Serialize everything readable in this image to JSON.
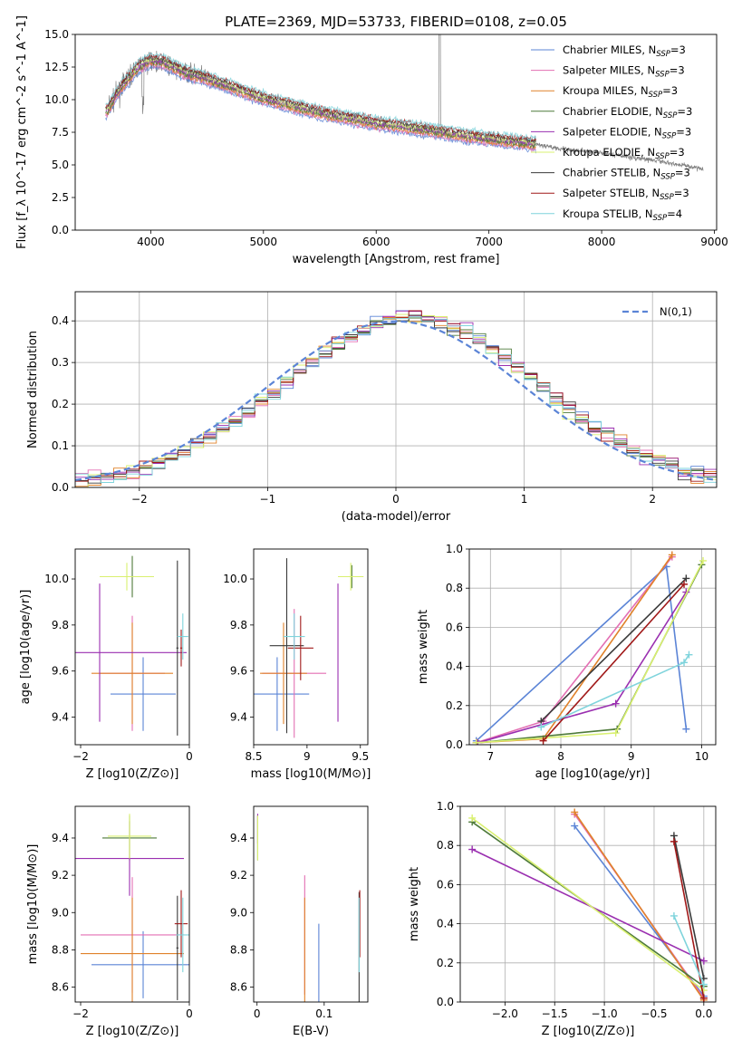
{
  "figure": {
    "title": "PLATE=2369, MJD=53733, FIBERID=0108, z=0.05"
  },
  "colors": {
    "data": "#808080",
    "series": [
      "#5b84d6",
      "#e36fb3",
      "#e0822a",
      "#4e7a3a",
      "#9a2fb0",
      "#d9f070",
      "#3a3a3a",
      "#a01818",
      "#7fd4dc"
    ]
  },
  "legend": [
    {
      "label": "Chabrier MILES, N",
      "sub": "SSP",
      "suffix": "=3"
    },
    {
      "label": "Salpeter MILES, N",
      "sub": "SSP",
      "suffix": "=3"
    },
    {
      "label": "Kroupa MILES, N",
      "sub": "SSP",
      "suffix": "=3"
    },
    {
      "label": "Chabrier ELODIE, N",
      "sub": "SSP",
      "suffix": "=3"
    },
    {
      "label": "Salpeter ELODIE, N",
      "sub": "SSP",
      "suffix": "=3"
    },
    {
      "label": "Kroupa ELODIE, N",
      "sub": "SSP",
      "suffix": "=3"
    },
    {
      "label": "Chabrier STELIB, N",
      "sub": "SSP",
      "suffix": "=3"
    },
    {
      "label": "Salpeter STELIB, N",
      "sub": "SSP",
      "suffix": "=3"
    },
    {
      "label": "Kroupa STELIB, N",
      "sub": "SSP",
      "suffix": "=4"
    }
  ],
  "chart_data": [
    {
      "id": "spectrum",
      "type": "line",
      "xlabel": "wavelength [Angstrom, rest frame]",
      "ylabel": "Flux [f_λ 10^-17 erg cm^-2 s^-1 A^-1]",
      "xlim": [
        3330,
        9020
      ],
      "ylim": [
        0,
        15
      ],
      "xticks": [
        4000,
        5000,
        6000,
        7000,
        8000,
        9000
      ],
      "yticks": [
        0.0,
        2.5,
        5.0,
        7.5,
        10.0,
        12.5,
        15.0
      ],
      "continuum": {
        "x": [
          3620,
          3700,
          3800,
          3900,
          4000,
          4100,
          4300,
          4500,
          5000,
          5500,
          6000,
          6500,
          7000,
          7400,
          7600,
          8000,
          8500,
          8900
        ],
        "y": [
          9.2,
          10.5,
          11.6,
          12.6,
          13.0,
          12.9,
          12.1,
          11.6,
          10.1,
          9.0,
          8.2,
          7.6,
          7.0,
          6.6,
          6.3,
          5.9,
          5.3,
          4.7
        ]
      },
      "model_range": [
        3600,
        7420
      ]
    },
    {
      "id": "residuals",
      "type": "line",
      "xlabel": "(data-model)/error",
      "ylabel": "Normed distribution",
      "xlim": [
        -2.5,
        2.5
      ],
      "ylim": [
        0,
        0.47
      ],
      "xticks": [
        -2,
        -1,
        0,
        1,
        2
      ],
      "yticks": [
        0.0,
        0.1,
        0.2,
        0.3,
        0.4
      ],
      "legend_label": "N(0,1)",
      "bin_width": 0.1,
      "grid": true
    },
    {
      "id": "age_vs_Z",
      "type": "scatter",
      "xlabel": "Z [log10(Z/Z⊙)]",
      "ylabel": "age [log10(age/yr)]",
      "xlim": [
        -2.1,
        0.0
      ],
      "ylim": [
        9.28,
        10.13
      ],
      "xticks": [
        -2,
        0
      ],
      "yticks": [
        9.4,
        9.6,
        9.8,
        10.0
      ],
      "points": [
        {
          "x": -0.85,
          "y": 9.5,
          "xerr": 0.6,
          "yerr": 0.16
        },
        {
          "x": -1.05,
          "y": 9.59,
          "xerr": 0.6,
          "yerr": 0.25
        },
        {
          "x": -1.05,
          "y": 9.59,
          "xerr": 0.75,
          "yerr": 0.22
        },
        {
          "x": -1.05,
          "y": 10.01,
          "xerr": 0.4,
          "yerr": 0.09
        },
        {
          "x": -1.65,
          "y": 9.68,
          "xerr": 1.6,
          "yerr": 0.3
        },
        {
          "x": -1.15,
          "y": 10.01,
          "xerr": 0.5,
          "yerr": 0.06
        },
        {
          "x": -0.22,
          "y": 9.7,
          "xerr": 0.02,
          "yerr": 0.38
        },
        {
          "x": -0.15,
          "y": 9.7,
          "xerr": 0.02,
          "yerr": 0.08
        },
        {
          "x": -0.12,
          "y": 9.75,
          "xerr": 0.1,
          "yerr": 0.1
        }
      ]
    },
    {
      "id": "age_vs_mass",
      "type": "scatter",
      "xlabel": "mass [log10(M/M⊙)]",
      "ylabel": "",
      "xlim": [
        8.5,
        9.57
      ],
      "ylim": [
        9.28,
        10.13
      ],
      "xticks": [
        8.5,
        9.0,
        9.5
      ],
      "yticks": [
        9.4,
        9.6,
        9.8,
        10.0
      ],
      "points": [
        {
          "x": 8.72,
          "y": 9.5,
          "xerr": 0.3,
          "yerr": 0.16
        },
        {
          "x": 8.88,
          "y": 9.59,
          "xerr": 0.3,
          "yerr": 0.28
        },
        {
          "x": 8.78,
          "y": 9.59,
          "xerr": 0.22,
          "yerr": 0.22
        },
        {
          "x": 9.42,
          "y": 10.01,
          "xerr": 0.1,
          "yerr": 0.05
        },
        {
          "x": 9.29,
          "y": 9.68,
          "xerr": 0.0,
          "yerr": 0.3
        },
        {
          "x": 9.41,
          "y": 10.01,
          "xerr": 0.12,
          "yerr": 0.06
        },
        {
          "x": 8.81,
          "y": 9.71,
          "xerr": 0.16,
          "yerr": 0.38
        },
        {
          "x": 8.94,
          "y": 9.7,
          "xerr": 0.12,
          "yerr": 0.14
        },
        {
          "x": 8.88,
          "y": 9.75,
          "xerr": 0.1,
          "yerr": 0.1
        }
      ]
    },
    {
      "id": "weight_vs_age",
      "type": "line",
      "xlabel": "age [log10(age/yr)]",
      "ylabel": "mass weight",
      "xlim": [
        6.7,
        10.2
      ],
      "ylim": [
        0,
        1.0
      ],
      "xticks": [
        7,
        8,
        9,
        10
      ],
      "yticks": [
        0.0,
        0.2,
        0.4,
        0.6,
        0.8,
        1.0
      ],
      "series": [
        {
          "x": [
            6.8,
            9.5,
            9.78
          ],
          "y": [
            0.02,
            0.91,
            0.08
          ]
        },
        {
          "x": [
            6.8,
            7.75,
            9.58
          ],
          "y": [
            0.01,
            0.12,
            0.96
          ]
        },
        {
          "x": [
            6.8,
            7.75,
            9.58
          ],
          "y": [
            0.01,
            0.03,
            0.97
          ]
        },
        {
          "x": [
            6.82,
            8.8,
            10.0
          ],
          "y": [
            0.01,
            0.08,
            0.92
          ]
        },
        {
          "x": [
            6.82,
            8.78,
            9.78
          ],
          "y": [
            0.01,
            0.21,
            0.78
          ]
        },
        {
          "x": [
            6.8,
            8.78,
            10.02
          ],
          "y": [
            0.01,
            0.06,
            0.94
          ]
        },
        {
          "x": [
            7.72,
            9.78
          ],
          "y": [
            0.12,
            0.85
          ]
        },
        {
          "x": [
            7.75,
            9.75
          ],
          "y": [
            0.02,
            0.82
          ]
        },
        {
          "x": [
            7.72,
            9.75,
            9.82
          ],
          "y": [
            0.09,
            0.42,
            0.46
          ]
        }
      ]
    },
    {
      "id": "mass_vs_Z",
      "type": "scatter",
      "xlabel": "Z [log10(Z/Z⊙)]",
      "ylabel": "mass [log10(M/M⊙)]",
      "xlim": [
        -2.1,
        0.0
      ],
      "ylim": [
        8.52,
        9.57
      ],
      "xticks": [
        -2,
        0
      ],
      "yticks": [
        8.6,
        8.8,
        9.0,
        9.2,
        9.4
      ],
      "points": [
        {
          "x": -0.85,
          "y": 8.72,
          "xerr": 0.95,
          "yerr": 0.18
        },
        {
          "x": -1.05,
          "y": 8.88,
          "xerr": 0.95,
          "yerr": 0.31
        },
        {
          "x": -1.05,
          "y": 8.78,
          "xerr": 0.95,
          "yerr": 0.3
        },
        {
          "x": -1.1,
          "y": 9.4,
          "xerr": 0.5,
          "yerr": 0.12
        },
        {
          "x": -1.1,
          "y": 9.29,
          "xerr": 1.0,
          "yerr": 0.2
        },
        {
          "x": -1.1,
          "y": 9.41,
          "xerr": 0.4,
          "yerr": 0.12
        },
        {
          "x": -0.22,
          "y": 8.81,
          "xerr": 0.02,
          "yerr": 0.28
        },
        {
          "x": -0.15,
          "y": 8.94,
          "xerr": 0.12,
          "yerr": 0.18
        },
        {
          "x": -0.12,
          "y": 8.88,
          "xerr": 0.12,
          "yerr": 0.2
        }
      ]
    },
    {
      "id": "mass_vs_EBV",
      "type": "scatter",
      "xlabel": "E(B-V)",
      "ylabel": "",
      "xlim": [
        -0.005,
        0.165
      ],
      "ylim": [
        8.52,
        9.57
      ],
      "xticks": [
        0.0,
        0.1
      ],
      "yticks": [
        8.6,
        8.8,
        9.0,
        9.2,
        9.4
      ],
      "points": [
        {
          "x": 0.092,
          "y": 8.72,
          "xerr": 0.0,
          "yerr": 0.22
        },
        {
          "x": 0.071,
          "y": 8.88,
          "xerr": 0.0,
          "yerr": 0.32
        },
        {
          "x": 0.071,
          "y": 8.78,
          "xerr": 0.0,
          "yerr": 0.3
        },
        {
          "x": 0.001,
          "y": 9.4,
          "xerr": 0.0,
          "yerr": 0.12
        },
        {
          "x": 0.001,
          "y": 9.45,
          "xerr": 0.0,
          "yerr": 0.08
        },
        {
          "x": 0.001,
          "y": 9.4,
          "xerr": 0.0,
          "yerr": 0.12
        },
        {
          "x": 0.152,
          "y": 8.81,
          "xerr": 0.0,
          "yerr": 0.3
        },
        {
          "x": 0.153,
          "y": 8.94,
          "xerr": 0.0,
          "yerr": 0.18
        },
        {
          "x": 0.152,
          "y": 8.88,
          "xerr": 0.0,
          "yerr": 0.2
        }
      ]
    },
    {
      "id": "weight_vs_Z",
      "type": "line",
      "xlabel": "Z [log10(Z/Z⊙)]",
      "ylabel": "mass weight",
      "xlim": [
        -2.45,
        0.12
      ],
      "ylim": [
        0,
        1.0
      ],
      "xticks": [
        -2.0,
        -1.5,
        -1.0,
        -0.5,
        0.0
      ],
      "yticks": [
        0.0,
        0.2,
        0.4,
        0.6,
        0.8,
        1.0
      ],
      "series": [
        {
          "x": [
            -1.3,
            0.0
          ],
          "y": [
            0.9,
            0.03
          ]
        },
        {
          "x": [
            -1.3,
            0.0
          ],
          "y": [
            0.96,
            0.02
          ]
        },
        {
          "x": [
            -1.3,
            0.0
          ],
          "y": [
            0.97,
            0.01
          ]
        },
        {
          "x": [
            -2.33,
            0.0
          ],
          "y": [
            0.92,
            0.08
          ]
        },
        {
          "x": [
            -2.33,
            0.0
          ],
          "y": [
            0.78,
            0.21
          ]
        },
        {
          "x": [
            -2.33,
            0.0
          ],
          "y": [
            0.94,
            0.06
          ]
        },
        {
          "x": [
            -0.3,
            0.0
          ],
          "y": [
            0.85,
            0.12
          ]
        },
        {
          "x": [
            -0.3,
            0.0
          ],
          "y": [
            0.82,
            0.02
          ]
        },
        {
          "x": [
            -0.3,
            0.0
          ],
          "y": [
            0.44,
            0.09
          ]
        }
      ]
    }
  ]
}
